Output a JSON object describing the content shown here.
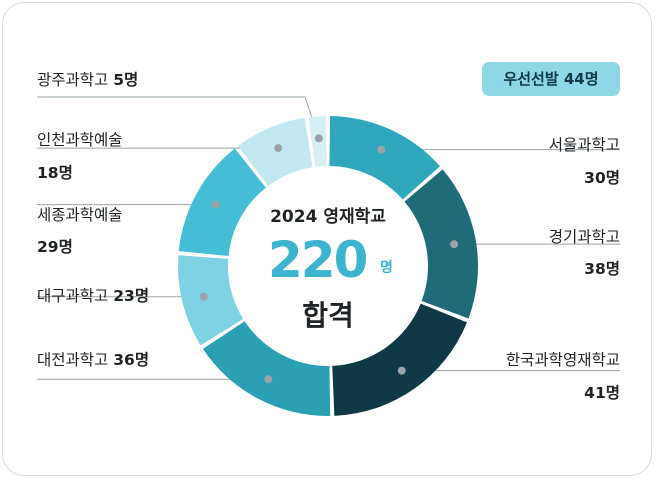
{
  "badge": "우선선발 44명",
  "center": {
    "title": "2024 영재학교",
    "number": "220",
    "unit": "명",
    "pass": "합격"
  },
  "chart_data": {
    "type": "pie",
    "total": 220,
    "slices": [
      {
        "name": "서울과학고",
        "value": 30,
        "label": "30명",
        "color": "#2fa7bd"
      },
      {
        "name": "경기과학고",
        "value": 38,
        "label": "38명",
        "color": "#1f6b78"
      },
      {
        "name": "한국과학영재학교",
        "value": 41,
        "label": "41명",
        "color": "#0f3a45"
      },
      {
        "name": "대전과학고",
        "value": 36,
        "label": "36명",
        "color": "#2b9fb3"
      },
      {
        "name": "대구과학고",
        "value": 23,
        "label": "23명",
        "color": "#7fd2e3"
      },
      {
        "name": "세종과학예술",
        "value": 29,
        "label": "29명",
        "color": "#45bdd6"
      },
      {
        "name": "인천과학예술",
        "value": 18,
        "label": "18명",
        "color": "#c2e8f1"
      },
      {
        "name": "광주과학고",
        "value": 5,
        "label": "5명",
        "color": "#d6eff4"
      }
    ]
  }
}
